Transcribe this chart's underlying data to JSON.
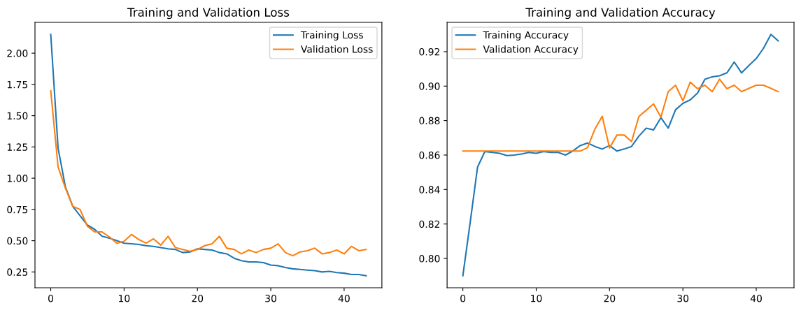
{
  "chart_data": [
    {
      "type": "line",
      "title": "Training and Validation Loss",
      "x": [
        0,
        1,
        2,
        3,
        4,
        5,
        6,
        7,
        8,
        9,
        10,
        11,
        12,
        13,
        14,
        15,
        16,
        17,
        18,
        19,
        20,
        21,
        22,
        23,
        24,
        25,
        26,
        27,
        28,
        29,
        30,
        31,
        32,
        33,
        34,
        35,
        36,
        37,
        38,
        39,
        40,
        41,
        42,
        43
      ],
      "series": [
        {
          "name": "Training Loss",
          "color": "#1f77b4",
          "values": [
            2.15,
            1.24,
            0.93,
            0.775,
            0.7,
            0.625,
            0.59,
            0.535,
            0.52,
            0.5,
            0.48,
            0.475,
            0.47,
            0.46,
            0.455,
            0.445,
            0.435,
            0.43,
            0.405,
            0.41,
            0.435,
            0.43,
            0.425,
            0.405,
            0.395,
            0.36,
            0.34,
            0.33,
            0.33,
            0.325,
            0.305,
            0.3,
            0.285,
            0.275,
            0.27,
            0.265,
            0.26,
            0.25,
            0.255,
            0.245,
            0.24,
            0.23,
            0.23,
            0.22
          ]
        },
        {
          "name": "Validation Loss",
          "color": "#ff7f0e",
          "values": [
            1.7,
            1.09,
            0.92,
            0.775,
            0.75,
            0.615,
            0.57,
            0.57,
            0.53,
            0.48,
            0.495,
            0.55,
            0.51,
            0.48,
            0.515,
            0.465,
            0.535,
            0.445,
            0.43,
            0.415,
            0.43,
            0.46,
            0.475,
            0.535,
            0.44,
            0.43,
            0.395,
            0.425,
            0.405,
            0.43,
            0.44,
            0.475,
            0.405,
            0.38,
            0.41,
            0.42,
            0.44,
            0.395,
            0.405,
            0.425,
            0.395,
            0.455,
            0.42,
            0.43
          ]
        }
      ],
      "xlim": [
        -2.15,
        45.15
      ],
      "xticks": [
        0,
        10,
        20,
        30,
        40
      ],
      "ylim": [
        0.1235,
        2.2465
      ],
      "yticks": [
        {
          "value": 0.25,
          "label": "0.25"
        },
        {
          "value": 0.5,
          "label": "0.50"
        },
        {
          "value": 0.75,
          "label": "0.75"
        },
        {
          "value": 1.0,
          "label": "1.00"
        },
        {
          "value": 1.25,
          "label": "1.25"
        },
        {
          "value": 1.5,
          "label": "1.50"
        },
        {
          "value": 1.75,
          "label": "1.75"
        },
        {
          "value": 2.0,
          "label": "2.00"
        }
      ],
      "legend": "top right",
      "grid": false
    },
    {
      "type": "line",
      "title": "Training and Validation Accuracy",
      "x": [
        0,
        1,
        2,
        3,
        4,
        5,
        6,
        7,
        8,
        9,
        10,
        11,
        12,
        13,
        14,
        15,
        16,
        17,
        18,
        19,
        20,
        21,
        22,
        23,
        24,
        25,
        26,
        27,
        28,
        29,
        30,
        31,
        32,
        33,
        34,
        35,
        36,
        37,
        38,
        39,
        40,
        41,
        42,
        43
      ],
      "series": [
        {
          "name": "Training Accuracy",
          "color": "#1f77b4",
          "values": [
            0.79,
            0.821,
            0.853,
            0.862,
            0.8615,
            0.861,
            0.8597,
            0.86,
            0.8606,
            0.8615,
            0.861,
            0.862,
            0.8615,
            0.8615,
            0.86,
            0.8624,
            0.8655,
            0.867,
            0.865,
            0.8635,
            0.8655,
            0.8623,
            0.8635,
            0.865,
            0.871,
            0.8756,
            0.8746,
            0.8817,
            0.8756,
            0.8863,
            0.89,
            0.892,
            0.896,
            0.904,
            0.9054,
            0.906,
            0.9077,
            0.914,
            0.9077,
            0.912,
            0.916,
            0.922,
            0.93,
            0.9262
          ]
        },
        {
          "name": "Validation Accuracy",
          "color": "#ff7f0e",
          "values": [
            0.8623,
            0.8623,
            0.8623,
            0.8623,
            0.8623,
            0.8623,
            0.8623,
            0.8623,
            0.8623,
            0.8623,
            0.8623,
            0.8623,
            0.8623,
            0.8623,
            0.8623,
            0.8623,
            0.8623,
            0.8643,
            0.875,
            0.8825,
            0.8641,
            0.8716,
            0.8716,
            0.8678,
            0.8824,
            0.886,
            0.8897,
            0.882,
            0.8968,
            0.9005,
            0.8915,
            0.9023,
            0.8985,
            0.9005,
            0.8968,
            0.904,
            0.8985,
            0.9005,
            0.8968,
            0.8987,
            0.9005,
            0.9005,
            0.8987,
            0.8968
          ]
        }
      ],
      "xlim": [
        -2.15,
        45.15
      ],
      "xticks": [
        0,
        10,
        20,
        30,
        40
      ],
      "ylim": [
        0.783,
        0.937
      ],
      "yticks": [
        {
          "value": 0.8,
          "label": "0.80"
        },
        {
          "value": 0.82,
          "label": "0.82"
        },
        {
          "value": 0.84,
          "label": "0.84"
        },
        {
          "value": 0.86,
          "label": "0.86"
        },
        {
          "value": 0.88,
          "label": "0.88"
        },
        {
          "value": 0.9,
          "label": "0.90"
        },
        {
          "value": 0.92,
          "label": "0.92"
        }
      ],
      "legend": "top left",
      "grid": false
    }
  ]
}
